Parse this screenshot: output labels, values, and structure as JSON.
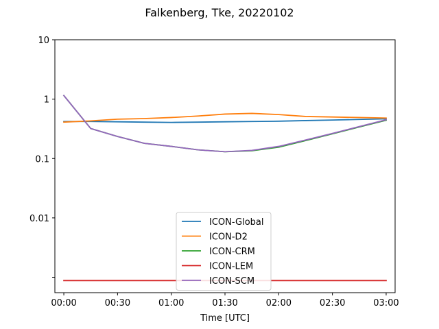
{
  "chart_data": {
    "type": "line",
    "title": "Falkenberg, Tke, 20220102",
    "xlabel": "Time [UTC]",
    "ylabel": "",
    "yscale": "log",
    "ylim": [
      0.00055,
      10
    ],
    "xlim": [
      -5,
      185
    ],
    "x": [
      0,
      15,
      30,
      45,
      60,
      75,
      90,
      105,
      120,
      135,
      150,
      165,
      180
    ],
    "xticks": [
      {
        "value": 0,
        "label": "00:00"
      },
      {
        "value": 30,
        "label": "00:30"
      },
      {
        "value": 60,
        "label": "01:00"
      },
      {
        "value": 90,
        "label": "01:30"
      },
      {
        "value": 120,
        "label": "02:00"
      },
      {
        "value": 150,
        "label": "02:30"
      },
      {
        "value": 180,
        "label": "03:00"
      }
    ],
    "yticks": [
      {
        "value": 10,
        "label": "10"
      },
      {
        "value": 1,
        "label": "1"
      },
      {
        "value": 0.1,
        "label": "0.1"
      },
      {
        "value": 0.01,
        "label": "0.01"
      },
      {
        "value": 0.001,
        "label": ""
      }
    ],
    "grid": false,
    "legend_position": "bottom-center",
    "series": [
      {
        "name": "ICON-Global",
        "color": "#1f77b4",
        "values": [
          0.42,
          0.42,
          0.415,
          0.41,
          0.405,
          0.41,
          0.415,
          0.42,
          0.425,
          0.435,
          0.445,
          0.455,
          0.465
        ]
      },
      {
        "name": "ICON-D2",
        "color": "#ff7f0e",
        "values": [
          0.41,
          0.43,
          0.46,
          0.47,
          0.49,
          0.52,
          0.56,
          0.575,
          0.55,
          0.51,
          0.5,
          0.49,
          0.48
        ]
      },
      {
        "name": "ICON-CRM",
        "color": "#2ca02c",
        "values": [
          1.15,
          0.32,
          0.235,
          0.18,
          0.16,
          0.14,
          0.13,
          0.135,
          0.155,
          0.2,
          0.26,
          0.34,
          0.44
        ]
      },
      {
        "name": "ICON-LEM",
        "color": "#d62728",
        "values": [
          0.00088,
          0.00088,
          0.00088,
          0.00088,
          0.00088,
          0.00088,
          0.00088,
          0.00088,
          0.00088,
          0.00088,
          0.00088,
          0.00088,
          0.00088
        ]
      },
      {
        "name": "ICON-SCM",
        "color": "#9467bd",
        "values": [
          1.15,
          0.32,
          0.235,
          0.18,
          0.16,
          0.14,
          0.13,
          0.137,
          0.16,
          0.205,
          0.265,
          0.345,
          0.45
        ]
      }
    ]
  }
}
